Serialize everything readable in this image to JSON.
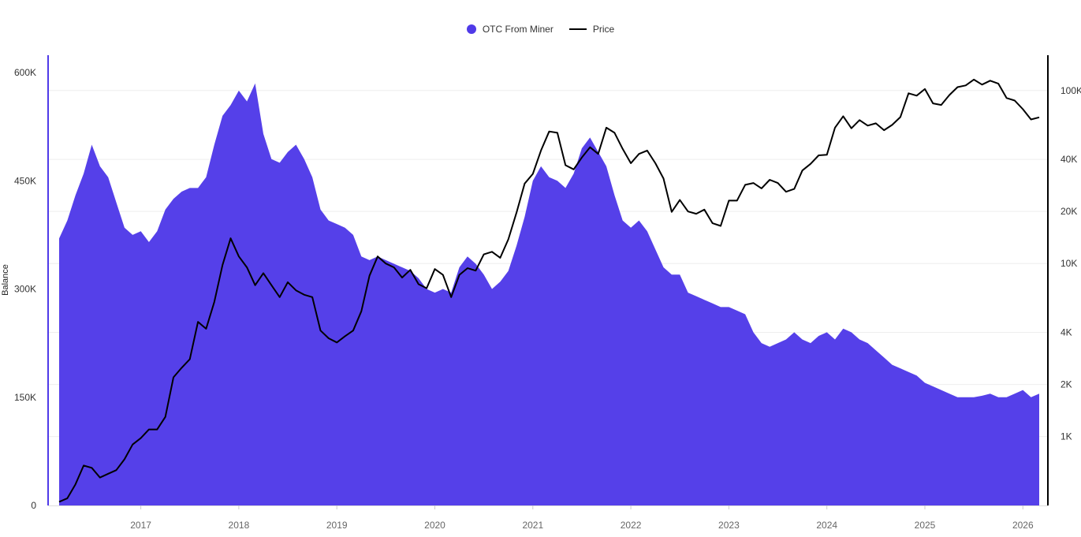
{
  "chart_data": {
    "type": "area",
    "legend": [
      {
        "name": "OTC From Miner",
        "color": "#4f3ae8",
        "symbol": "dot"
      },
      {
        "name": "Price",
        "color": "#000000",
        "symbol": "line"
      }
    ],
    "legend_placement": "top-center",
    "ylabel": "Balance",
    "grid": true,
    "x_range": [
      "2016-03",
      "2026-03"
    ],
    "x_ticks": [
      "2017",
      "2018",
      "2019",
      "2020",
      "2021",
      "2022",
      "2023",
      "2024",
      "2025",
      "2026"
    ],
    "y_left": {
      "range": [
        0,
        600000
      ],
      "ticks": [
        {
          "value": 0,
          "label": "0"
        },
        {
          "value": 150000,
          "label": "150K"
        },
        {
          "value": 300000,
          "label": "300K"
        },
        {
          "value": 450000,
          "label": "450K"
        },
        {
          "value": 600000,
          "label": "600K"
        }
      ]
    },
    "y_right": {
      "scale": "log",
      "range": [
        400,
        160000
      ],
      "ticks": [
        {
          "value": 1000,
          "label": "1K"
        },
        {
          "value": 2000,
          "label": "2K"
        },
        {
          "value": 4000,
          "label": "4K"
        },
        {
          "value": 10000,
          "label": "10K"
        },
        {
          "value": 20000,
          "label": "20K"
        },
        {
          "value": 40000,
          "label": "40K"
        },
        {
          "value": 100000,
          "label": "100K"
        }
      ]
    },
    "series": [
      {
        "name": "OTC From Miner",
        "type": "area",
        "axis": "left",
        "color": "#4f3ae8",
        "x": [
          "2016-03",
          "2016-04",
          "2016-05",
          "2016-06",
          "2016-07",
          "2016-08",
          "2016-09",
          "2016-10",
          "2016-11",
          "2016-12",
          "2017-01",
          "2017-02",
          "2017-03",
          "2017-04",
          "2017-05",
          "2017-06",
          "2017-07",
          "2017-08",
          "2017-09",
          "2017-10",
          "2017-11",
          "2017-12",
          "2018-01",
          "2018-02",
          "2018-03",
          "2018-04",
          "2018-05",
          "2018-06",
          "2018-07",
          "2018-08",
          "2018-09",
          "2018-10",
          "2018-11",
          "2018-12",
          "2019-01",
          "2019-02",
          "2019-03",
          "2019-04",
          "2019-05",
          "2019-06",
          "2019-07",
          "2019-08",
          "2019-09",
          "2019-10",
          "2019-11",
          "2019-12",
          "2020-01",
          "2020-02",
          "2020-03",
          "2020-04",
          "2020-05",
          "2020-06",
          "2020-07",
          "2020-08",
          "2020-09",
          "2020-10",
          "2020-11",
          "2020-12",
          "2021-01",
          "2021-02",
          "2021-03",
          "2021-04",
          "2021-05",
          "2021-06",
          "2021-07",
          "2021-08",
          "2021-09",
          "2021-10",
          "2021-11",
          "2021-12",
          "2022-01",
          "2022-02",
          "2022-03",
          "2022-04",
          "2022-05",
          "2022-06",
          "2022-07",
          "2022-08",
          "2022-09",
          "2022-10",
          "2022-11",
          "2022-12",
          "2023-01",
          "2023-02",
          "2023-03",
          "2023-04",
          "2023-05",
          "2023-06",
          "2023-07",
          "2023-08",
          "2023-09",
          "2023-10",
          "2023-11",
          "2023-12",
          "2024-01",
          "2024-02",
          "2024-03",
          "2024-04",
          "2024-05",
          "2024-06",
          "2024-07",
          "2024-08",
          "2024-09",
          "2024-10",
          "2024-11",
          "2024-12",
          "2025-01",
          "2025-02",
          "2025-03",
          "2025-04",
          "2025-05",
          "2025-06",
          "2025-07",
          "2025-08",
          "2025-09",
          "2025-10",
          "2025-11",
          "2025-12",
          "2026-01",
          "2026-02",
          "2026-03"
        ],
        "values": [
          370000,
          395000,
          430000,
          460000,
          500000,
          470000,
          455000,
          420000,
          385000,
          375000,
          380000,
          365000,
          380000,
          410000,
          425000,
          435000,
          440000,
          440000,
          455000,
          500000,
          540000,
          555000,
          575000,
          560000,
          585000,
          515000,
          480000,
          475000,
          490000,
          500000,
          480000,
          455000,
          410000,
          395000,
          390000,
          385000,
          375000,
          345000,
          340000,
          345000,
          340000,
          335000,
          330000,
          325000,
          315000,
          300000,
          295000,
          300000,
          295000,
          330000,
          345000,
          335000,
          320000,
          300000,
          310000,
          325000,
          360000,
          400000,
          450000,
          470000,
          455000,
          450000,
          440000,
          460000,
          495000,
          510000,
          490000,
          470000,
          430000,
          395000,
          385000,
          395000,
          380000,
          355000,
          330000,
          320000,
          320000,
          295000,
          290000,
          285000,
          280000,
          275000,
          275000,
          270000,
          265000,
          240000,
          225000,
          220000,
          225000,
          230000,
          240000,
          230000,
          225000,
          235000,
          240000,
          230000,
          245000,
          240000,
          230000,
          225000,
          215000,
          205000,
          195000,
          190000,
          185000,
          180000,
          170000,
          165000,
          160000,
          155000,
          150000,
          150000,
          150000,
          152000,
          155000,
          150000,
          150000,
          155000,
          160000,
          150000,
          155000
        ]
      },
      {
        "name": "Price",
        "type": "line",
        "axis": "right",
        "color": "#000000",
        "x": [
          "2016-03",
          "2016-04",
          "2016-05",
          "2016-06",
          "2016-07",
          "2016-08",
          "2016-09",
          "2016-10",
          "2016-11",
          "2016-12",
          "2017-01",
          "2017-02",
          "2017-03",
          "2017-04",
          "2017-05",
          "2017-06",
          "2017-07",
          "2017-08",
          "2017-09",
          "2017-10",
          "2017-11",
          "2017-12",
          "2018-01",
          "2018-02",
          "2018-03",
          "2018-04",
          "2018-05",
          "2018-06",
          "2018-07",
          "2018-08",
          "2018-09",
          "2018-10",
          "2018-11",
          "2018-12",
          "2019-01",
          "2019-02",
          "2019-03",
          "2019-04",
          "2019-05",
          "2019-06",
          "2019-07",
          "2019-08",
          "2019-09",
          "2019-10",
          "2019-11",
          "2019-12",
          "2020-01",
          "2020-02",
          "2020-03",
          "2020-04",
          "2020-05",
          "2020-06",
          "2020-07",
          "2020-08",
          "2020-09",
          "2020-10",
          "2020-11",
          "2020-12",
          "2021-01",
          "2021-02",
          "2021-03",
          "2021-04",
          "2021-05",
          "2021-06",
          "2021-07",
          "2021-08",
          "2021-09",
          "2021-10",
          "2021-11",
          "2021-12",
          "2022-01",
          "2022-02",
          "2022-03",
          "2022-04",
          "2022-05",
          "2022-06",
          "2022-07",
          "2022-08",
          "2022-09",
          "2022-10",
          "2022-11",
          "2022-12",
          "2023-01",
          "2023-02",
          "2023-03",
          "2023-04",
          "2023-05",
          "2023-06",
          "2023-07",
          "2023-08",
          "2023-09",
          "2023-10",
          "2023-11",
          "2023-12",
          "2024-01",
          "2024-02",
          "2024-03",
          "2024-04",
          "2024-05",
          "2024-06",
          "2024-07",
          "2024-08",
          "2024-09",
          "2024-10",
          "2024-11",
          "2024-12",
          "2025-01",
          "2025-02",
          "2025-03",
          "2025-04",
          "2025-05",
          "2025-06",
          "2025-07",
          "2025-08",
          "2025-09",
          "2025-10",
          "2025-11",
          "2025-12",
          "2026-01",
          "2026-02",
          "2026-03"
        ],
        "values": [
          420,
          440,
          530,
          680,
          660,
          580,
          610,
          640,
          740,
          900,
          980,
          1100,
          1100,
          1300,
          2200,
          2500,
          2800,
          4600,
          4200,
          6000,
          9800,
          14000,
          11000,
          9500,
          7500,
          8800,
          7500,
          6400,
          7800,
          7000,
          6600,
          6400,
          4100,
          3700,
          3500,
          3800,
          4100,
          5300,
          8500,
          11000,
          10000,
          9500,
          8300,
          9200,
          7600,
          7200,
          9300,
          8600,
          6400,
          8600,
          9400,
          9100,
          11300,
          11700,
          10800,
          13800,
          19700,
          29000,
          33000,
          45000,
          58000,
          57000,
          37000,
          35000,
          41000,
          47000,
          43000,
          61000,
          57000,
          46000,
          38000,
          43000,
          45000,
          38000,
          31000,
          19900,
          23300,
          20000,
          19400,
          20500,
          17100,
          16500,
          23100,
          23100,
          28500,
          29200,
          27200,
          30500,
          29200,
          26000,
          27000,
          34500,
          37700,
          42200,
          42500,
          61000,
          71000,
          60500,
          67500,
          62700,
          64600,
          59000,
          63300,
          70200,
          96400,
          93400,
          102000,
          84300,
          82500,
          94200,
          104600,
          107100,
          115700,
          108200,
          114000,
          109500,
          90500,
          87500,
          78000,
          68000,
          70000
        ]
      }
    ]
  }
}
